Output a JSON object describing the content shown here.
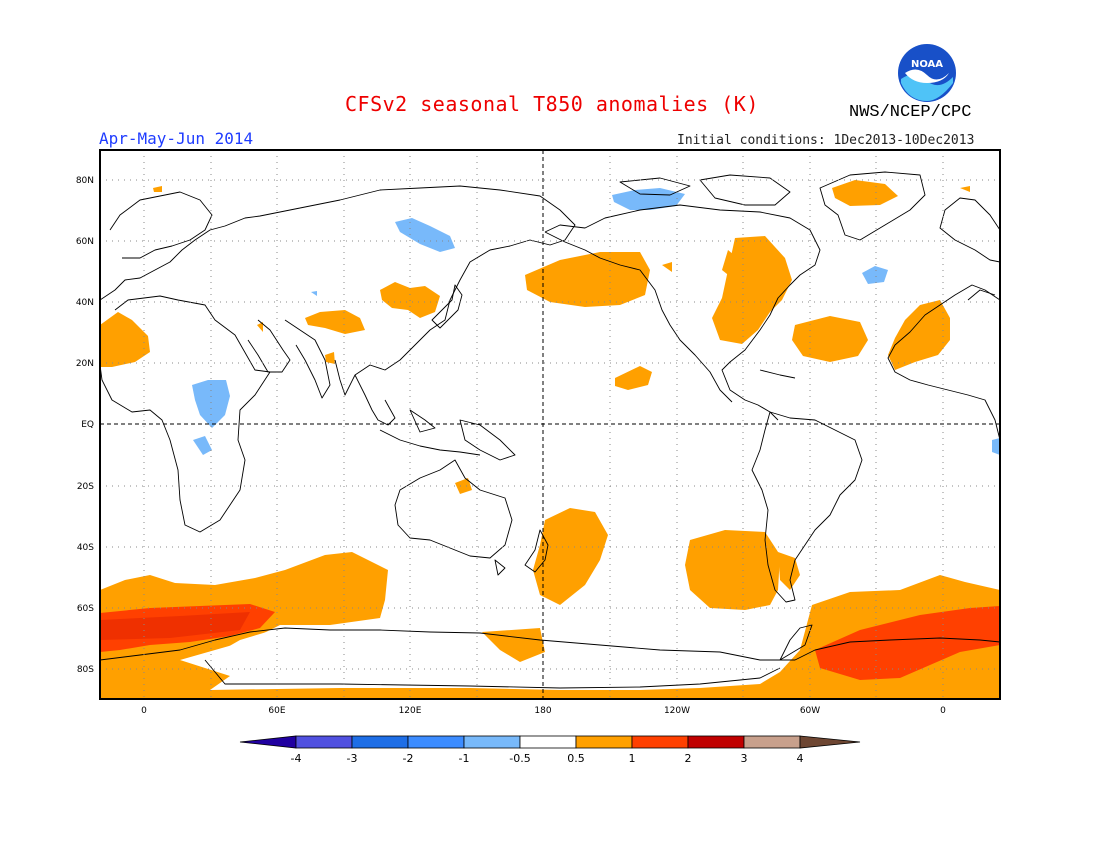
{
  "header": {
    "title": "CFSv2 seasonal T850 anomalies (K)",
    "organization": "NWS/NCEP/CPC",
    "logo_text": "NOAA",
    "season": "Apr-May-Jun 2014",
    "initial_conditions": "Initial conditions: 1Dec2013-10Dec2013"
  },
  "map": {
    "lat_labels": [
      "80N",
      "60N",
      "40N",
      "20N",
      "EQ",
      "20S",
      "40S",
      "60S",
      "80S"
    ],
    "lon_labels": [
      "0",
      "60E",
      "120E",
      "180",
      "120W",
      "60W",
      "0"
    ],
    "colors": {
      "orange": "#ffa000",
      "red_orange": "#ff4000",
      "dark_red": "#c00000",
      "light_blue": "#78b9fa"
    }
  },
  "colorbar": {
    "labels": [
      "-4",
      "-3",
      "-2",
      "-1",
      "-0.5",
      "0.5",
      "1",
      "2",
      "3",
      "4"
    ],
    "colors": [
      "#2000a0",
      "#5050e0",
      "#1e6ee6",
      "#3c8cff",
      "#78b9fa",
      "#ffffff",
      "#ffa000",
      "#ff4000",
      "#c00000",
      "#c8a08c",
      "#6e4632"
    ]
  }
}
